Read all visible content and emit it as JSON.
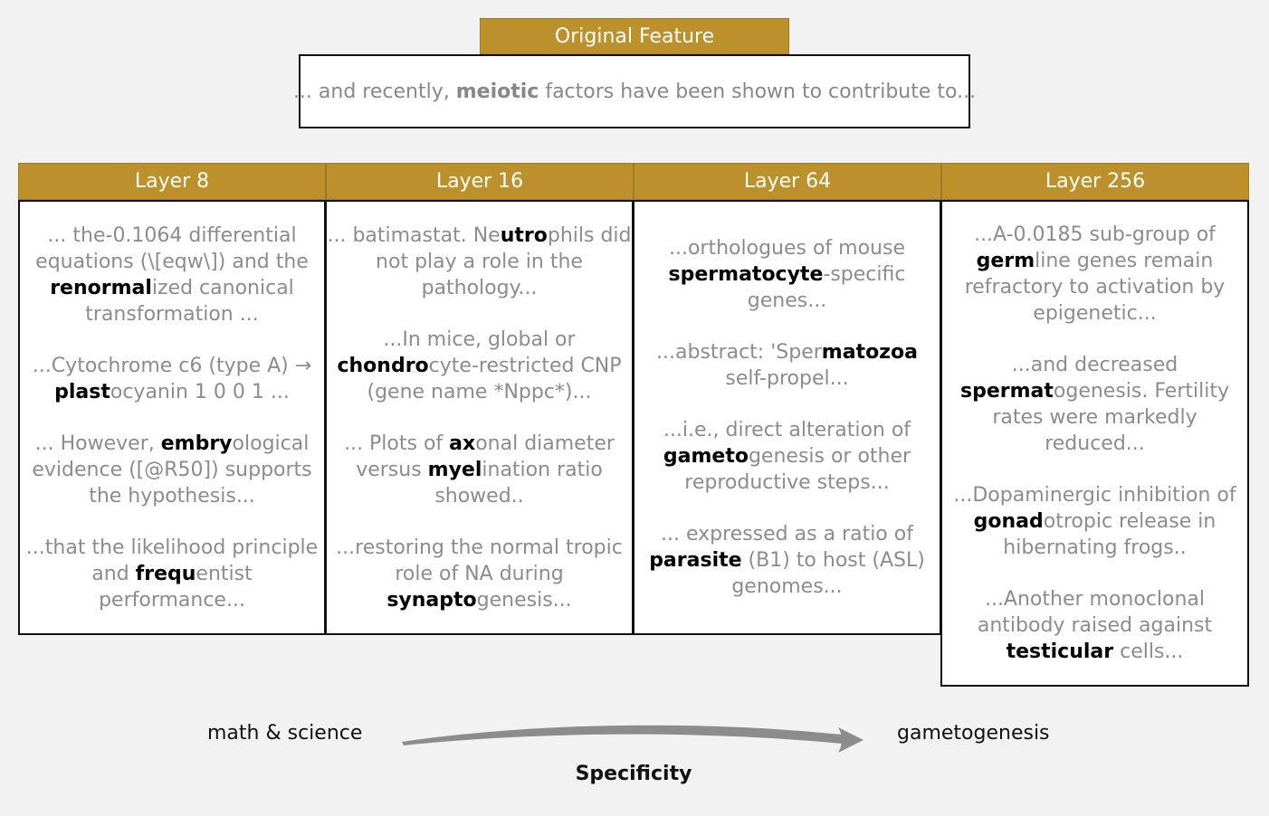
{
  "original": {
    "header": "Original Feature",
    "parts": [
      {
        "text": "... and recently, ",
        "bold": false
      },
      {
        "text": "meiotic",
        "bold": true
      },
      {
        "text": " factors have been shown to contribute to...",
        "bold": false
      }
    ]
  },
  "layers": [
    {
      "header": "Layer 8",
      "snippets": [
        [
          {
            "text": "... the-0.1064 differential equations (\\[eqw\\]) and the ",
            "bold": false
          },
          {
            "text": "renormal",
            "bold": true
          },
          {
            "text": "ized canonical transformation ...",
            "bold": false
          }
        ],
        [
          {
            "text": "...Cytochrome c6 (type A) → ",
            "bold": false
          },
          {
            "text": "plast",
            "bold": true
          },
          {
            "text": "ocyanin 1 0 0 1 ...",
            "bold": false
          }
        ],
        [
          {
            "text": "... However, ",
            "bold": false
          },
          {
            "text": "embry",
            "bold": true
          },
          {
            "text": "ological evidence ([@R50]) supports the hypothesis...",
            "bold": false
          }
        ],
        [
          {
            "text": "...that the likelihood principle and ",
            "bold": false
          },
          {
            "text": "frequ",
            "bold": true
          },
          {
            "text": "entist performance...",
            "bold": false
          }
        ]
      ]
    },
    {
      "header": "Layer 16",
      "snippets": [
        [
          {
            "text": "... batimastat. Ne",
            "bold": false
          },
          {
            "text": "utro",
            "bold": true
          },
          {
            "text": "phils did not play a role in the pathology...",
            "bold": false
          }
        ],
        [
          {
            "text": "...In mice, global or ",
            "bold": false
          },
          {
            "text": "chondro",
            "bold": true
          },
          {
            "text": "cyte-restricted CNP (gene name *Nppc*)...",
            "bold": false
          }
        ],
        [
          {
            "text": "... Plots of ",
            "bold": false
          },
          {
            "text": "ax",
            "bold": true
          },
          {
            "text": "onal diameter versus ",
            "bold": false
          },
          {
            "text": "myel",
            "bold": true
          },
          {
            "text": "ination ratio showed..",
            "bold": false
          }
        ],
        [
          {
            "text": "...restoring the normal tropic role of NA during ",
            "bold": false
          },
          {
            "text": "synapto",
            "bold": true
          },
          {
            "text": "genesis...",
            "bold": false
          }
        ]
      ]
    },
    {
      "header": "Layer 64",
      "snippets": [
        [
          {
            "text": "...orthologues of mouse ",
            "bold": false
          },
          {
            "text": "spermatocyte",
            "bold": true
          },
          {
            "text": "-specific genes...",
            "bold": false
          }
        ],
        [
          {
            "text": "...abstract: 'Sper",
            "bold": false
          },
          {
            "text": "matozoa",
            "bold": true
          },
          {
            "text": " self-propel...",
            "bold": false
          }
        ],
        [
          {
            "text": "...i.e., direct alteration of ",
            "bold": false
          },
          {
            "text": "gameto",
            "bold": true
          },
          {
            "text": "genesis or other reproductive steps...",
            "bold": false
          }
        ],
        [
          {
            "text": "... expressed as a ratio of ",
            "bold": false
          },
          {
            "text": "parasite",
            "bold": true
          },
          {
            "text": " (B1) to host (ASL) genomes...",
            "bold": false
          }
        ]
      ]
    },
    {
      "header": "Layer 256",
      "snippets": [
        [
          {
            "text": "...A-0.0185 sub-group of ",
            "bold": false
          },
          {
            "text": "germ",
            "bold": true
          },
          {
            "text": "line genes remain refractory to activation by epigenetic...",
            "bold": false
          }
        ],
        [
          {
            "text": "...and decreased ",
            "bold": false
          },
          {
            "text": "spermat",
            "bold": true
          },
          {
            "text": "ogenesis. Fertility rates were markedly reduced...",
            "bold": false
          }
        ],
        [
          {
            "text": "...Dopaminergic inhibition of ",
            "bold": false
          },
          {
            "text": "gonad",
            "bold": true
          },
          {
            "text": "otropic release in hibernating frogs..",
            "bold": false
          }
        ],
        [
          {
            "text": "...Another monoclonal antibody raised against ",
            "bold": false
          },
          {
            "text": "testicular",
            "bold": true
          },
          {
            "text": " cells...",
            "bold": false
          }
        ]
      ]
    }
  ],
  "axis": {
    "left_label": "math & science",
    "right_label": "gametogenesis",
    "caption": "Specificity",
    "arrow_color": "#8c8c8c"
  }
}
